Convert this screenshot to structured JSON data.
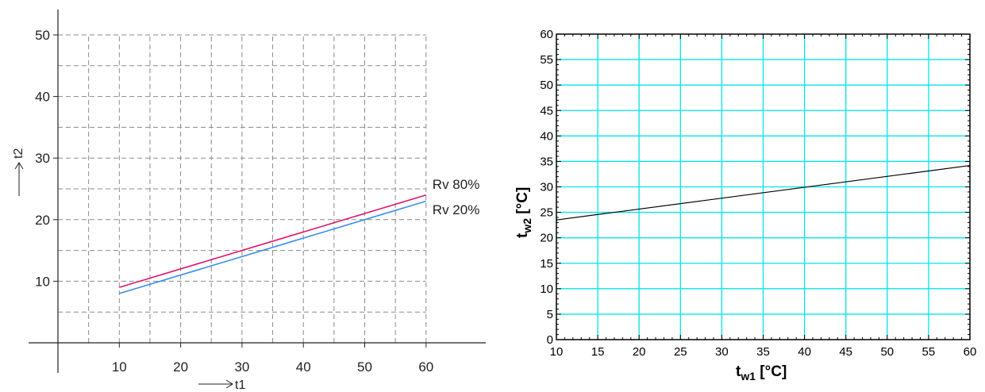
{
  "chart_data": [
    {
      "type": "line",
      "title": "",
      "xlabel": "t1",
      "ylabel": "t2",
      "x_ticks": [
        10,
        20,
        30,
        40,
        50,
        60
      ],
      "y_ticks": [
        10,
        20,
        30,
        40,
        50
      ],
      "xlim": [
        0,
        60
      ],
      "ylim": [
        0,
        50
      ],
      "grid": true,
      "grid_style": "dashed",
      "series": [
        {
          "name": "Rv 80%",
          "x": [
            10,
            60
          ],
          "y": [
            9,
            24
          ],
          "color": "#e0156e"
        },
        {
          "name": "Rv 20%",
          "x": [
            10,
            60
          ],
          "y": [
            8,
            23
          ],
          "color": "#3a8ef0"
        }
      ]
    },
    {
      "type": "line",
      "title": "",
      "xlabel_main": "t",
      "xlabel_sub": "w1",
      "xlabel_unit": "[°C]",
      "ylabel_main": "t",
      "ylabel_sub": "w2",
      "ylabel_unit": "[°C]",
      "x_ticks": [
        10,
        15,
        20,
        25,
        30,
        35,
        40,
        45,
        50,
        55,
        60
      ],
      "y_ticks": [
        0,
        5,
        10,
        15,
        20,
        25,
        30,
        35,
        40,
        45,
        50,
        55,
        60
      ],
      "xlim": [
        10,
        60
      ],
      "ylim": [
        0,
        60
      ],
      "grid": true,
      "grid_color": "#00e5ee",
      "series": [
        {
          "x": [
            10,
            60
          ],
          "y": [
            23.5,
            34.2
          ],
          "color": "#000000"
        }
      ]
    }
  ]
}
